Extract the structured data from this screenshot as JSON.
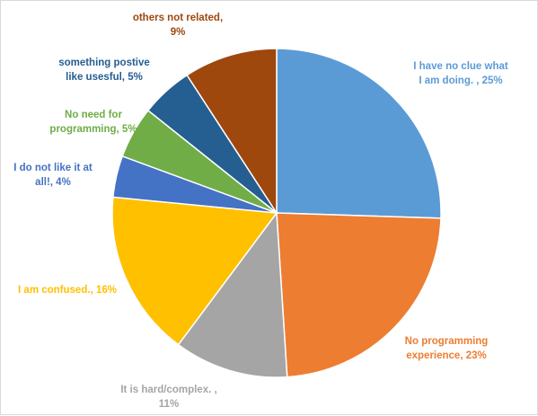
{
  "chart_data": {
    "type": "pie",
    "title": "",
    "start_angle_deg": 0,
    "direction": "clockwise",
    "slices": [
      {
        "lines": [
          "I have no clue what",
          "I am doing. , 25%"
        ],
        "label": "I have no clue what I am doing. , 25%",
        "value": 25,
        "color": "#5B9BD5"
      },
      {
        "lines": [
          "No programming",
          "experience, 23%"
        ],
        "label": "No programming experience, 23%",
        "value": 23,
        "color": "#ED7D31"
      },
      {
        "lines": [
          "It is hard/complex. ,",
          "11%"
        ],
        "label": "It is hard/complex. , 11%",
        "value": 11,
        "color": "#A5A5A5"
      },
      {
        "lines": [
          "I am confused., 16%"
        ],
        "label": "I am confused., 16%",
        "value": 16,
        "color": "#FFC000"
      },
      {
        "lines": [
          "I do not like it at",
          "all!, 4%"
        ],
        "label": "I do not like it at all!, 4%",
        "value": 4,
        "color": "#4472C4"
      },
      {
        "lines": [
          "No need for",
          "programming, 5%"
        ],
        "label": "No need for programming, 5%",
        "value": 5,
        "color": "#70AD47"
      },
      {
        "lines": [
          "something postive",
          "like usesful, 5%"
        ],
        "label": "something postive like usesful, 5%",
        "value": 5,
        "color": "#255E91"
      },
      {
        "lines": [
          "others not related,",
          "9%"
        ],
        "label": "others not related, 9%",
        "value": 9,
        "color": "#9E480E"
      }
    ]
  }
}
